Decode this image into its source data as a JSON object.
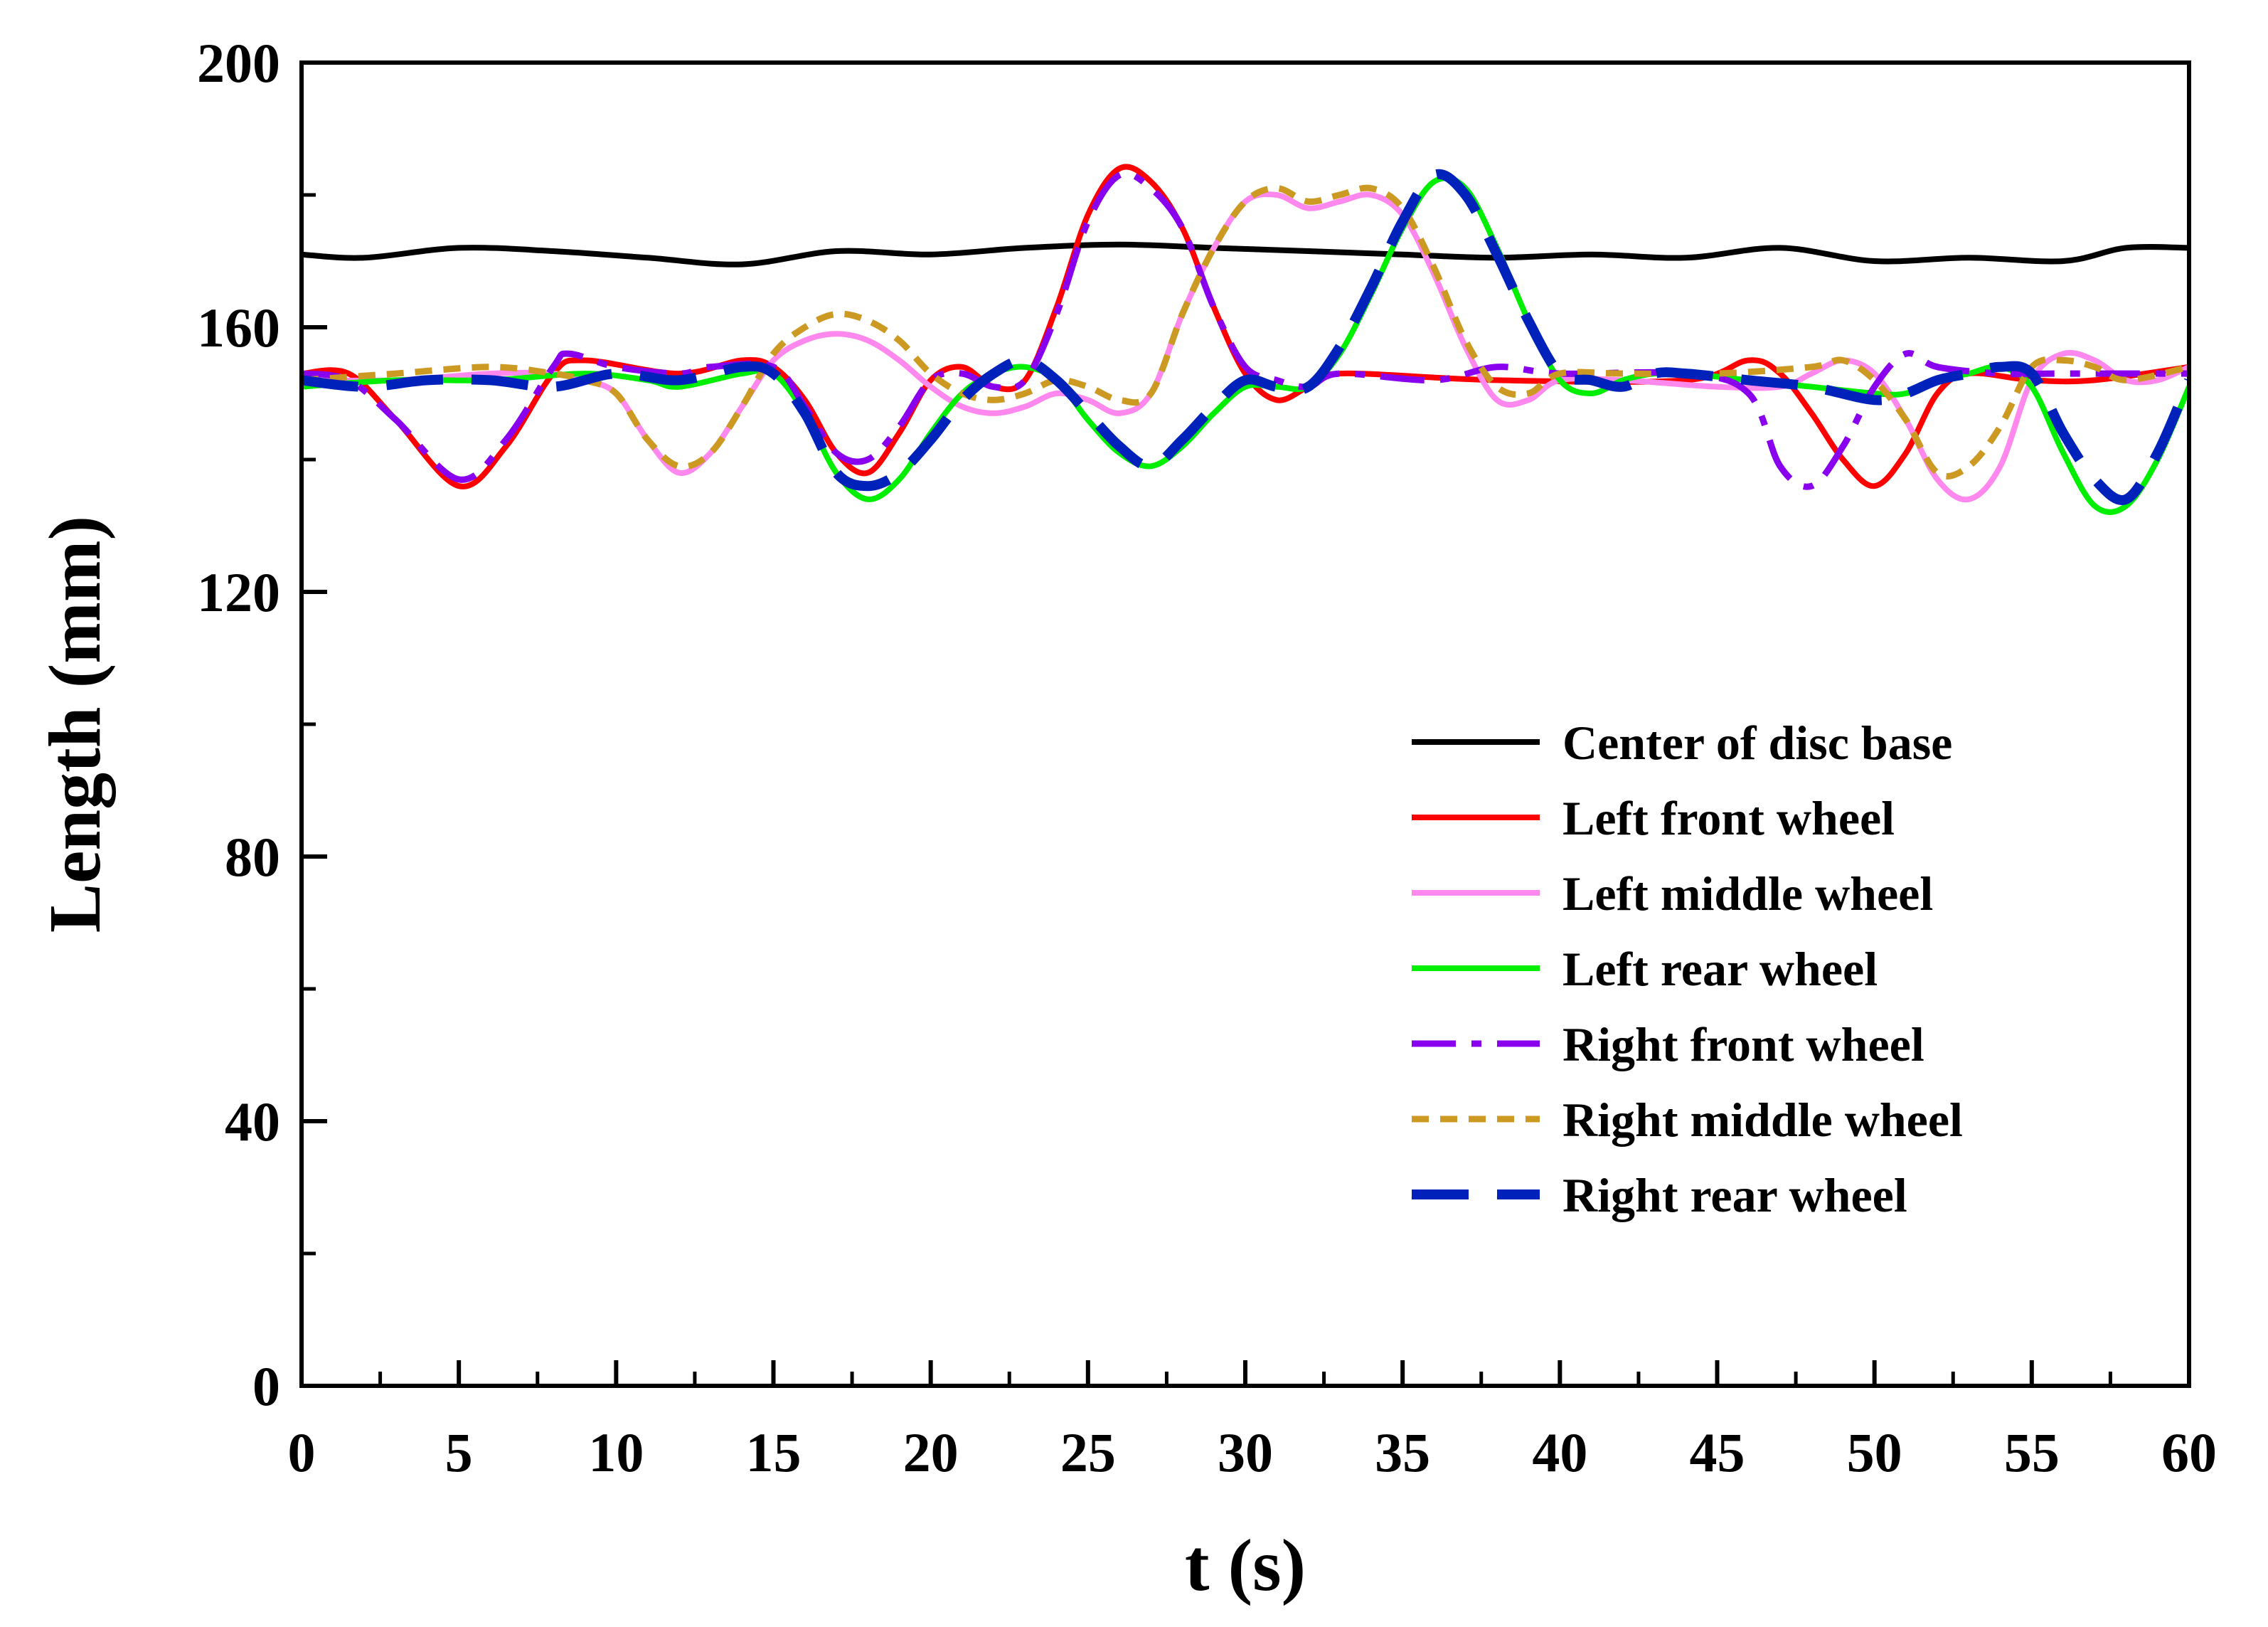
{
  "chart_data": {
    "type": "line",
    "title": "",
    "xlabel": "t (s)",
    "ylabel": "Length (mm)",
    "xlim": [
      0,
      60
    ],
    "ylim": [
      0,
      200
    ],
    "x_ticks": [
      0,
      5,
      10,
      15,
      20,
      25,
      30,
      35,
      40,
      45,
      50,
      55,
      60
    ],
    "y_ticks": [
      0,
      40,
      80,
      120,
      160,
      200
    ],
    "legend_position": "right-center",
    "grid": false,
    "series": [
      {
        "name": "Center of disc base",
        "color": "#000000",
        "style": "solid",
        "points": [
          [
            0,
            171
          ],
          [
            2,
            170.5
          ],
          [
            5,
            172
          ],
          [
            8,
            171.5
          ],
          [
            11,
            170.5
          ],
          [
            14,
            169.5
          ],
          [
            17,
            171.5
          ],
          [
            20,
            171
          ],
          [
            23,
            172
          ],
          [
            26,
            172.5
          ],
          [
            29,
            172
          ],
          [
            32,
            171.5
          ],
          [
            35,
            171
          ],
          [
            38,
            170.5
          ],
          [
            41,
            171
          ],
          [
            44,
            170.5
          ],
          [
            47,
            172
          ],
          [
            50,
            170
          ],
          [
            53,
            170.5
          ],
          [
            56,
            170
          ],
          [
            58,
            172
          ],
          [
            60,
            172
          ]
        ]
      },
      {
        "name": "Left front wheel",
        "color": "#ff0000",
        "style": "solid",
        "points": [
          [
            0,
            153
          ],
          [
            1.5,
            153
          ],
          [
            3,
            146
          ],
          [
            5,
            136
          ],
          [
            6.5,
            142
          ],
          [
            8,
            153
          ],
          [
            9,
            155
          ],
          [
            12,
            153
          ],
          [
            14,
            155
          ],
          [
            15,
            154
          ],
          [
            16,
            149
          ],
          [
            17,
            141
          ],
          [
            18,
            138
          ],
          [
            19,
            144
          ],
          [
            20,
            152
          ],
          [
            21,
            154
          ],
          [
            22,
            151
          ],
          [
            23,
            152
          ],
          [
            24,
            163
          ],
          [
            25,
            177
          ],
          [
            26,
            184
          ],
          [
            27,
            182
          ],
          [
            28,
            175
          ],
          [
            29,
            163
          ],
          [
            30,
            153
          ],
          [
            31,
            149
          ],
          [
            32,
            151
          ],
          [
            33,
            153
          ],
          [
            38,
            152
          ],
          [
            44,
            152
          ],
          [
            46,
            155
          ],
          [
            47,
            153
          ],
          [
            48,
            147
          ],
          [
            49,
            140
          ],
          [
            50,
            136
          ],
          [
            51,
            141
          ],
          [
            52,
            150
          ],
          [
            53,
            153
          ],
          [
            55,
            152
          ],
          [
            57,
            152
          ],
          [
            60,
            154
          ]
        ]
      },
      {
        "name": "Left middle wheel",
        "color": "#ff88ee",
        "style": "solid",
        "points": [
          [
            0,
            152
          ],
          [
            3,
            152
          ],
          [
            6,
            153
          ],
          [
            8,
            153
          ],
          [
            9,
            152
          ],
          [
            10,
            150
          ],
          [
            11,
            143
          ],
          [
            12,
            138
          ],
          [
            13,
            141
          ],
          [
            14,
            148
          ],
          [
            15,
            155
          ],
          [
            16,
            158
          ],
          [
            17,
            159
          ],
          [
            18,
            158
          ],
          [
            19,
            155
          ],
          [
            20,
            151
          ],
          [
            21,
            148
          ],
          [
            22,
            147
          ],
          [
            23,
            148
          ],
          [
            24,
            150
          ],
          [
            25,
            149
          ],
          [
            26,
            147
          ],
          [
            27,
            150
          ],
          [
            28,
            162
          ],
          [
            29,
            172
          ],
          [
            30,
            179
          ],
          [
            31,
            180
          ],
          [
            32,
            178
          ],
          [
            33,
            179
          ],
          [
            34,
            180
          ],
          [
            35,
            177
          ],
          [
            36,
            168
          ],
          [
            37,
            157
          ],
          [
            38,
            149
          ],
          [
            39,
            149
          ],
          [
            40,
            152
          ],
          [
            42,
            152
          ],
          [
            45,
            151
          ],
          [
            47,
            151
          ],
          [
            48,
            153
          ],
          [
            49,
            155
          ],
          [
            50,
            153
          ],
          [
            51,
            146
          ],
          [
            52,
            137
          ],
          [
            53,
            134
          ],
          [
            54,
            139
          ],
          [
            55,
            152
          ],
          [
            56,
            156
          ],
          [
            57,
            155
          ],
          [
            58,
            152
          ],
          [
            59,
            152
          ],
          [
            60,
            154
          ]
        ]
      },
      {
        "name": "Left rear wheel",
        "color": "#00ee00",
        "style": "solid",
        "points": [
          [
            0,
            151
          ],
          [
            3,
            152
          ],
          [
            6,
            152
          ],
          [
            9,
            153
          ],
          [
            11,
            152
          ],
          [
            12,
            151
          ],
          [
            14,
            153
          ],
          [
            15,
            153
          ],
          [
            16,
            147
          ],
          [
            17,
            138
          ],
          [
            18,
            134
          ],
          [
            19,
            137
          ],
          [
            20,
            144
          ],
          [
            21,
            150
          ],
          [
            22,
            153
          ],
          [
            23,
            154
          ],
          [
            24,
            152
          ],
          [
            25,
            146
          ],
          [
            26,
            141
          ],
          [
            27,
            139
          ],
          [
            28,
            142
          ],
          [
            29,
            147
          ],
          [
            30,
            151
          ],
          [
            31,
            151
          ],
          [
            32,
            151
          ],
          [
            33,
            156
          ],
          [
            34,
            165
          ],
          [
            35,
            175
          ],
          [
            36,
            182
          ],
          [
            37,
            181
          ],
          [
            38,
            172
          ],
          [
            39,
            161
          ],
          [
            40,
            152
          ],
          [
            41,
            150
          ],
          [
            42,
            152
          ],
          [
            43,
            153
          ],
          [
            44,
            153
          ],
          [
            46,
            152
          ],
          [
            48,
            151
          ],
          [
            50,
            150
          ],
          [
            51,
            150
          ],
          [
            52,
            152
          ],
          [
            53,
            153
          ],
          [
            54,
            154
          ],
          [
            55,
            151
          ],
          [
            56,
            141
          ],
          [
            57,
            133
          ],
          [
            58,
            133
          ],
          [
            59,
            140
          ],
          [
            60,
            151
          ]
        ]
      },
      {
        "name": "Right front wheel",
        "color": "#8800ee",
        "style": "dashdot",
        "points": [
          [
            0,
            153
          ],
          [
            1.5,
            152
          ],
          [
            3,
            146
          ],
          [
            5,
            137
          ],
          [
            6.5,
            143
          ],
          [
            8,
            154
          ],
          [
            8.5,
            156
          ],
          [
            10,
            154
          ],
          [
            12,
            153
          ],
          [
            13,
            154
          ],
          [
            15,
            154
          ],
          [
            16,
            148
          ],
          [
            17,
            141
          ],
          [
            18,
            140
          ],
          [
            19,
            145
          ],
          [
            20,
            152
          ],
          [
            21,
            153
          ],
          [
            22,
            151
          ],
          [
            23,
            152
          ],
          [
            24,
            162
          ],
          [
            25,
            176
          ],
          [
            26,
            183
          ],
          [
            27,
            181
          ],
          [
            28,
            175
          ],
          [
            29,
            163
          ],
          [
            30,
            154
          ],
          [
            31,
            152
          ],
          [
            32,
            151
          ],
          [
            33,
            153
          ],
          [
            36,
            152
          ],
          [
            38,
            154
          ],
          [
            40,
            153
          ],
          [
            44,
            153
          ],
          [
            46,
            150
          ],
          [
            47,
            139
          ],
          [
            48,
            136
          ],
          [
            49,
            142
          ],
          [
            50,
            151
          ],
          [
            51,
            156
          ],
          [
            52,
            154
          ],
          [
            54,
            153
          ],
          [
            56,
            153
          ],
          [
            60,
            153
          ]
        ]
      },
      {
        "name": "Right middle wheel",
        "color": "#cc9922",
        "style": "dotted",
        "points": [
          [
            0,
            152
          ],
          [
            3,
            153
          ],
          [
            6,
            154
          ],
          [
            8,
            153
          ],
          [
            9,
            152
          ],
          [
            10,
            150
          ],
          [
            11,
            143
          ],
          [
            12,
            139
          ],
          [
            13,
            141
          ],
          [
            14,
            148
          ],
          [
            15,
            156
          ],
          [
            16,
            160
          ],
          [
            17,
            162
          ],
          [
            18,
            161
          ],
          [
            19,
            158
          ],
          [
            20,
            153
          ],
          [
            21,
            150
          ],
          [
            22,
            149
          ],
          [
            23,
            150
          ],
          [
            24,
            152
          ],
          [
            25,
            151
          ],
          [
            26,
            149
          ],
          [
            27,
            150
          ],
          [
            28,
            162
          ],
          [
            29,
            172
          ],
          [
            30,
            179
          ],
          [
            31,
            181
          ],
          [
            32,
            179
          ],
          [
            33,
            180
          ],
          [
            34,
            181
          ],
          [
            35,
            178
          ],
          [
            36,
            169
          ],
          [
            37,
            158
          ],
          [
            38,
            151
          ],
          [
            39,
            150
          ],
          [
            40,
            153
          ],
          [
            42,
            153
          ],
          [
            45,
            153
          ],
          [
            48,
            154
          ],
          [
            49,
            155
          ],
          [
            50,
            152
          ],
          [
            51,
            146
          ],
          [
            52,
            138
          ],
          [
            53,
            139
          ],
          [
            54,
            145
          ],
          [
            55,
            154
          ],
          [
            56,
            155
          ],
          [
            57,
            154
          ],
          [
            58,
            152
          ],
          [
            60,
            154
          ]
        ]
      },
      {
        "name": "Right rear wheel",
        "color": "#0022bb",
        "style": "dashed",
        "points": [
          [
            0,
            152
          ],
          [
            2,
            151
          ],
          [
            4,
            152
          ],
          [
            6,
            152
          ],
          [
            8,
            151
          ],
          [
            10,
            153
          ],
          [
            12,
            152
          ],
          [
            14,
            154
          ],
          [
            15,
            153
          ],
          [
            16,
            147
          ],
          [
            17,
            138
          ],
          [
            18,
            136
          ],
          [
            19,
            138
          ],
          [
            20,
            143
          ],
          [
            21,
            149
          ],
          [
            22,
            153
          ],
          [
            23,
            155
          ],
          [
            24,
            152
          ],
          [
            25,
            147
          ],
          [
            26,
            142
          ],
          [
            27,
            139
          ],
          [
            28,
            143
          ],
          [
            29,
            148
          ],
          [
            30,
            152
          ],
          [
            31,
            151
          ],
          [
            32,
            151
          ],
          [
            33,
            157
          ],
          [
            34,
            166
          ],
          [
            35,
            176
          ],
          [
            36,
            183
          ],
          [
            37,
            180
          ],
          [
            38,
            171
          ],
          [
            39,
            161
          ],
          [
            40,
            153
          ],
          [
            41,
            152
          ],
          [
            42,
            151
          ],
          [
            43,
            153
          ],
          [
            44,
            153
          ],
          [
            46,
            152
          ],
          [
            48,
            151
          ],
          [
            50,
            149
          ],
          [
            51,
            150
          ],
          [
            52,
            152
          ],
          [
            53,
            153
          ],
          [
            54,
            154
          ],
          [
            55,
            153
          ],
          [
            56,
            144
          ],
          [
            57,
            137
          ],
          [
            58,
            134
          ],
          [
            59,
            141
          ],
          [
            60,
            152
          ]
        ]
      }
    ]
  }
}
